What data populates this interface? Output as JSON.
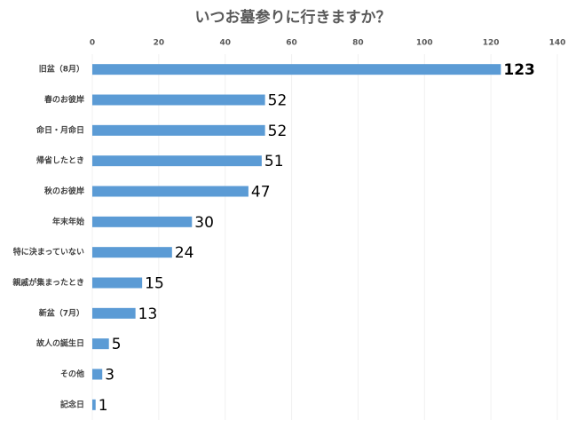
{
  "chart_data": {
    "type": "bar",
    "orientation": "horizontal",
    "title": "いつお墓参りに行きますか？",
    "categories": [
      "旧盆（8月）",
      "春のお彼岸",
      "命日・月命日",
      "帰省したとき",
      "秋のお彼岸",
      "年末年始",
      "特に決まっていない",
      "親戚が集まったとき",
      "新盆（7月）",
      "故人の誕生日",
      "その他",
      "記念日"
    ],
    "values": [
      123,
      52,
      52,
      51,
      47,
      30,
      24,
      15,
      13,
      5,
      3,
      1
    ],
    "color": "#5b9bd5",
    "xlim": [
      0,
      140
    ],
    "xticks": [
      0,
      20,
      40,
      60,
      80,
      100,
      120,
      140
    ],
    "grid": true
  }
}
